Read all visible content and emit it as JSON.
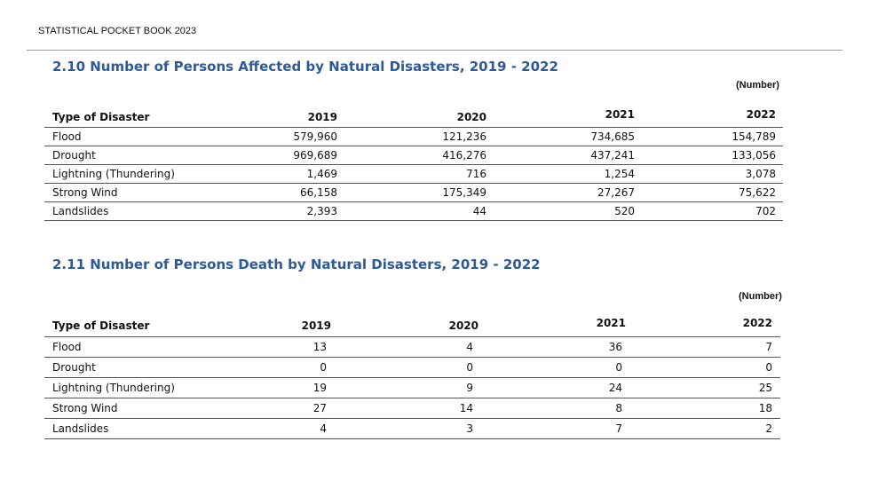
{
  "header": {
    "text": "STATISTICAL POCKET BOOK 2023"
  },
  "table1": {
    "title": "2.10 Number of Persons Affected by Natural Disasters, 2019 - 2022",
    "unit": "(Number)",
    "columns": [
      "Type of Disaster",
      "2019",
      "2020",
      "2021",
      "2022"
    ],
    "rows": [
      [
        "Flood",
        "579,960",
        "121,236",
        "734,685",
        "154,789"
      ],
      [
        "Drought",
        "969,689",
        "416,276",
        "437,241",
        "133,056"
      ],
      [
        "Lightning (Thundering)",
        "1,469",
        "716",
        "1,254",
        "3,078"
      ],
      [
        "Strong Wind",
        "66,158",
        "175,349",
        "27,267",
        "75,622"
      ],
      [
        "Landslides",
        "2,393",
        "44",
        "520",
        "702"
      ]
    ]
  },
  "table2": {
    "title": "2.11 Number of Persons Death by Natural Disasters, 2019 - 2022",
    "unit": "(Number)",
    "columns": [
      "Type of Disaster",
      "2019",
      "2020",
      "2021",
      "2022"
    ],
    "rows": [
      [
        "Flood",
        "13",
        "4",
        "36",
        "7"
      ],
      [
        "Drought",
        "0",
        "0",
        "0",
        "0"
      ],
      [
        "Lightning (Thundering)",
        "19",
        "9",
        "24",
        "25"
      ],
      [
        "Strong Wind",
        "27",
        "14",
        "8",
        "18"
      ],
      [
        "Landslides",
        "4",
        "3",
        "7",
        "2"
      ]
    ]
  }
}
